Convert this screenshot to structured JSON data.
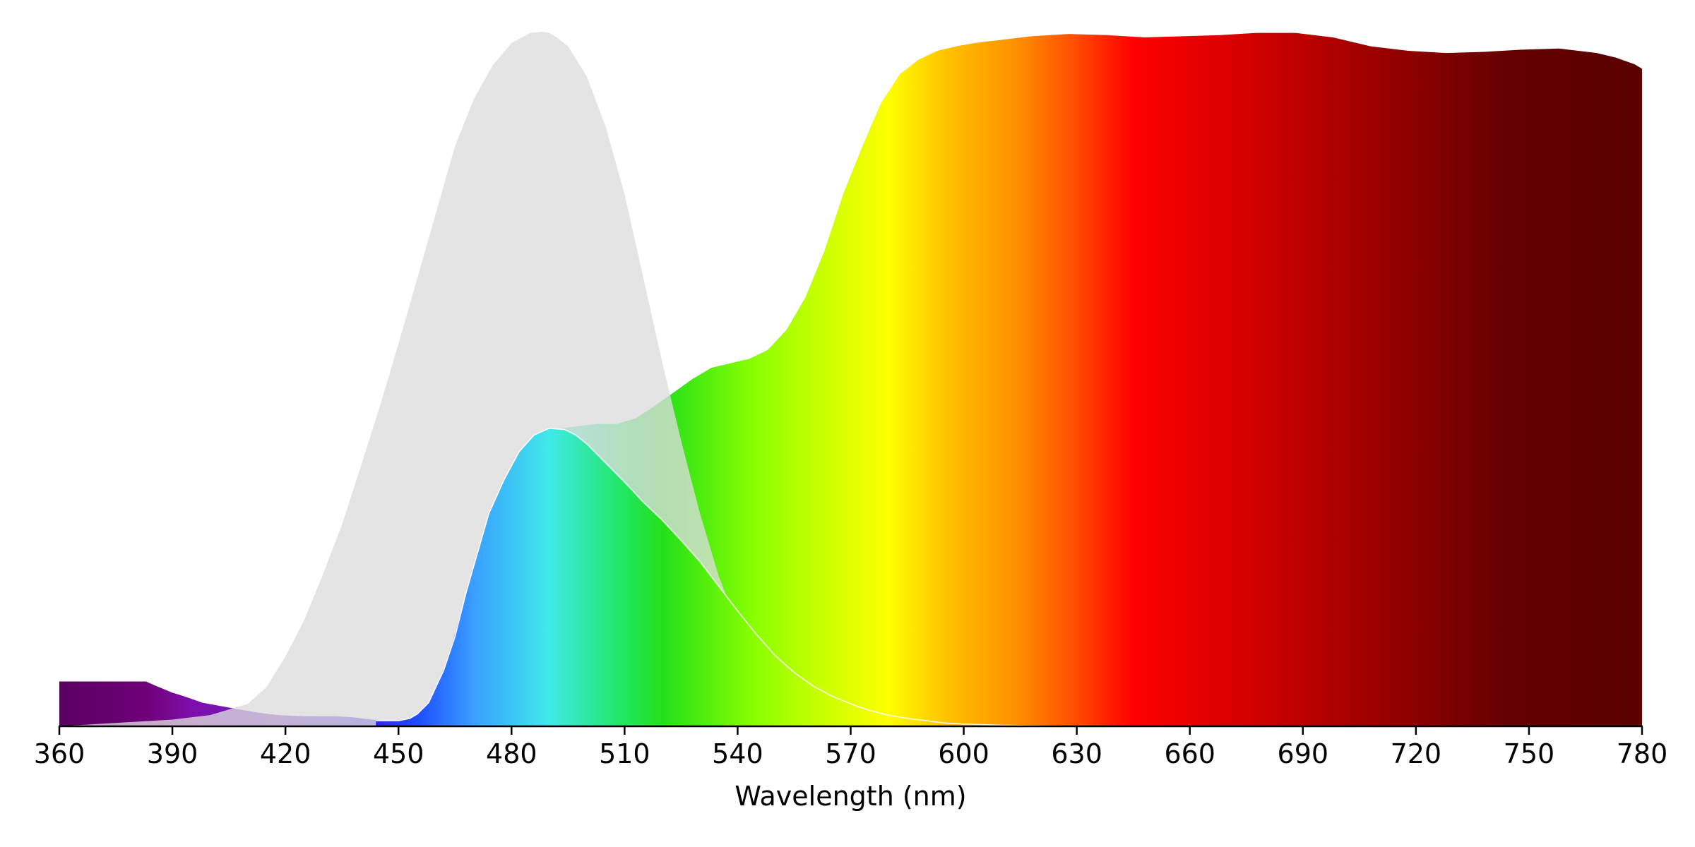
{
  "chart_data": {
    "type": "area",
    "title": "",
    "xlabel": "Wavelength (nm)",
    "ylabel": "",
    "xlim": [
      360,
      780
    ],
    "ylim": [
      0,
      1.0
    ],
    "x_ticks": [
      360,
      390,
      420,
      450,
      480,
      510,
      540,
      570,
      600,
      630,
      660,
      690,
      720,
      750,
      780
    ],
    "grid": false,
    "legend": "none",
    "colormap": {
      "stops": [
        {
          "nm": 360,
          "color": "#5a0062"
        },
        {
          "nm": 383,
          "color": "#6e0078"
        },
        {
          "nm": 395,
          "color": "#7f0eaa"
        },
        {
          "nm": 420,
          "color": "#6c1ec8"
        },
        {
          "nm": 440,
          "color": "#3818e6"
        },
        {
          "nm": 455,
          "color": "#1e4cff"
        },
        {
          "nm": 470,
          "color": "#3a9fff"
        },
        {
          "nm": 490,
          "color": "#40eaea"
        },
        {
          "nm": 510,
          "color": "#20e65e"
        },
        {
          "nm": 520,
          "color": "#24e01a"
        },
        {
          "nm": 545,
          "color": "#8cff00"
        },
        {
          "nm": 558,
          "color": "#bcff00"
        },
        {
          "nm": 580,
          "color": "#ffff00"
        },
        {
          "nm": 595,
          "color": "#ffc400"
        },
        {
          "nm": 615,
          "color": "#ff8c00"
        },
        {
          "nm": 630,
          "color": "#ff4a00"
        },
        {
          "nm": 645,
          "color": "#ff0000"
        },
        {
          "nm": 680,
          "color": "#cc0000"
        },
        {
          "nm": 710,
          "color": "#9a0000"
        },
        {
          "nm": 745,
          "color": "#640000"
        },
        {
          "nm": 780,
          "color": "#5a0000"
        }
      ]
    },
    "series": [
      {
        "role": "spectrum",
        "fill": "gradient",
        "x": [
          360,
          363,
          383,
          385,
          390,
          393,
          398,
          403,
          408,
          413,
          418,
          425,
          433,
          438,
          443,
          448,
          452,
          455,
          458,
          463,
          468,
          472,
          478,
          483,
          488,
          493,
          498,
          503,
          508,
          513,
          518,
          523,
          528,
          533,
          538,
          543,
          548,
          553,
          558,
          563,
          568,
          573,
          578,
          583,
          588,
          593,
          598,
          603,
          608,
          613,
          618,
          623,
          628,
          638,
          648,
          658,
          668,
          678,
          688,
          698,
          708,
          718,
          728,
          738,
          748,
          758,
          768,
          773,
          778,
          780
        ],
        "y": [
          0.0645,
          0.0645,
          0.0645,
          0.0597,
          0.0484,
          0.0435,
          0.0339,
          0.029,
          0.0242,
          0.0194,
          0.0161,
          0.0145,
          0.0145,
          0.0129,
          0.0097,
          0.0081,
          0.0081,
          0.0129,
          0.0323,
          0.0968,
          0.1935,
          0.2581,
          0.3468,
          0.3952,
          0.4194,
          0.429,
          0.4323,
          0.4355,
          0.4355,
          0.4435,
          0.4613,
          0.4806,
          0.5,
          0.5161,
          0.5226,
          0.529,
          0.5419,
          0.571,
          0.6177,
          0.6839,
          0.7661,
          0.8339,
          0.8968,
          0.9387,
          0.9597,
          0.9726,
          0.979,
          0.9839,
          0.9871,
          0.9903,
          0.9935,
          0.9952,
          0.9968,
          0.9952,
          0.9919,
          0.9935,
          0.9952,
          0.9984,
          0.9984,
          0.9919,
          0.979,
          0.9726,
          0.9694,
          0.971,
          0.9742,
          0.9758,
          0.9694,
          0.9629,
          0.9532,
          0.9468
        ]
      },
      {
        "role": "gray-curve",
        "color": "#dddddd",
        "x": [
          360,
          390,
          400,
          410,
          415,
          420,
          425,
          430,
          435,
          440,
          445,
          450,
          455,
          460,
          465,
          470,
          475,
          480,
          485,
          488,
          490,
          492,
          495,
          500,
          505,
          510,
          515,
          520,
          525,
          530,
          535,
          540,
          545,
          550,
          555,
          560,
          565,
          570,
          575,
          580,
          585,
          590,
          595,
          600,
          610,
          620,
          630,
          645,
          660,
          780
        ],
        "y": [
          0.0,
          0.0097,
          0.0161,
          0.0323,
          0.0565,
          0.1006,
          0.1532,
          0.2194,
          0.2903,
          0.3742,
          0.4597,
          0.5508,
          0.6452,
          0.7403,
          0.8355,
          0.9032,
          0.9516,
          0.9839,
          0.9984,
          1.0,
          0.9984,
          0.9919,
          0.979,
          0.9355,
          0.8629,
          0.7661,
          0.6452,
          0.5242,
          0.4113,
          0.3065,
          0.2161,
          0.1452,
          0.0919,
          0.0565,
          0.0355,
          0.0226,
          0.0145,
          0.0097,
          0.0065,
          0.0048,
          0.0032,
          0.0032,
          0.0016,
          0.0,
          0.0,
          0.0,
          0.0,
          0.0,
          0.0,
          0.0
        ]
      },
      {
        "role": "inner-curve",
        "fill": "gradient",
        "x": [
          444,
          450,
          453,
          455,
          458,
          462,
          465,
          468,
          471,
          474,
          478,
          482,
          486,
          490,
          494,
          497,
          500,
          505,
          510,
          515,
          520,
          525,
          530,
          535,
          540,
          545,
          550,
          555,
          560,
          565,
          570,
          575,
          580,
          585,
          590,
          595,
          600,
          610,
          620,
          630
        ],
        "y": [
          0.0081,
          0.0081,
          0.0113,
          0.0177,
          0.0339,
          0.0806,
          0.129,
          0.1935,
          0.25,
          0.3065,
          0.3548,
          0.3952,
          0.4194,
          0.429,
          0.4274,
          0.4194,
          0.4065,
          0.379,
          0.3516,
          0.3226,
          0.2968,
          0.2677,
          0.2371,
          0.2016,
          0.1661,
          0.1323,
          0.1016,
          0.0774,
          0.0581,
          0.0435,
          0.0323,
          0.0226,
          0.0161,
          0.0113,
          0.0081,
          0.0048,
          0.0032,
          0.0016,
          0.0008,
          0.0
        ]
      }
    ]
  }
}
